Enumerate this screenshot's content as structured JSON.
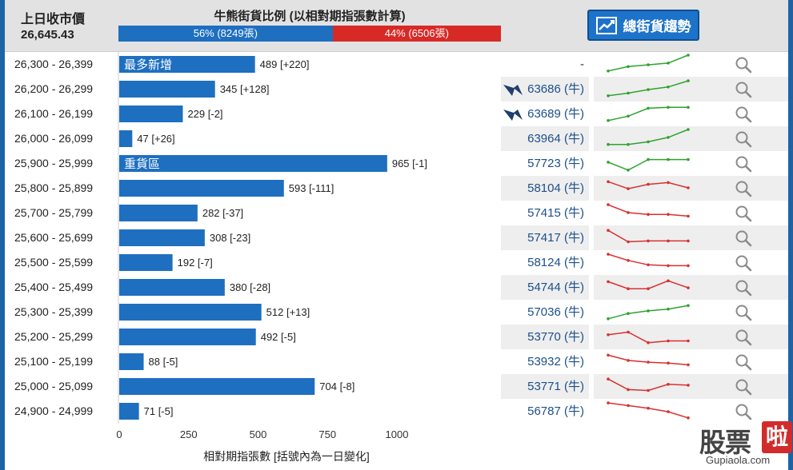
{
  "header": {
    "prev_close_label": "上日收市價",
    "prev_close_value": "26,645.43",
    "ratio_title": "牛熊街貨比例 (以相對期指張數計算)",
    "bull_text": "56% (8249張)",
    "bear_text": "44% (6506張)",
    "bull_pct": 56,
    "bear_pct": 44,
    "trend_button": "總街貨趨勢"
  },
  "colors": {
    "bar": "#1e6fc0",
    "bull": "#1e6fc0",
    "bear": "#d72a26",
    "spark_up": "#2ea32e",
    "spark_down": "#d93030",
    "code_text": "#1c4f8a"
  },
  "chart_data": {
    "type": "bar",
    "orientation": "horizontal",
    "xlabel": "相對期指張數 [括號內為一日變化]",
    "xlim": [
      0,
      1000
    ],
    "xticks": [
      0,
      250,
      500,
      750,
      1000
    ],
    "categories": [
      "26,300 - 26,399",
      "26,200 - 26,299",
      "26,100 - 26,199",
      "26,000 - 26,099",
      "25,900 - 25,999",
      "25,800 - 25,899",
      "25,700 - 25,799",
      "25,600 - 25,699",
      "25,500 - 25,599",
      "25,400 - 25,499",
      "25,300 - 25,399",
      "25,200 - 25,299",
      "25,100 - 25,199",
      "25,000 - 25,099",
      "24,900 - 24,999"
    ],
    "values": [
      489,
      345,
      229,
      47,
      965,
      593,
      282,
      308,
      192,
      380,
      512,
      492,
      88,
      704,
      71
    ],
    "data_labels": [
      "489 [+220]",
      "345 [+128]",
      "229 [-2]",
      "47 [+26]",
      "965 [-1]",
      "593 [-111]",
      "282 [-37]",
      "308 [-23]",
      "192 [-7]",
      "380 [-28]",
      "512 [+13]",
      "492 [-5]",
      "88 [-5]",
      "704 [-8]",
      "71 [-5]"
    ],
    "bar_notes": [
      {
        "row": 0,
        "text": "最多新增"
      },
      {
        "row": 4,
        "text": "重貨區"
      }
    ]
  },
  "rows": [
    {
      "code": "-",
      "icon": false,
      "trend": "up",
      "spark": [
        0.1,
        0.35,
        0.45,
        0.55,
        1.0
      ]
    },
    {
      "code": "63686 (牛)",
      "icon": true,
      "trend": "up",
      "spark": [
        0.1,
        0.25,
        0.45,
        0.6,
        0.95
      ]
    },
    {
      "code": "63689 (牛)",
      "icon": true,
      "trend": "up",
      "spark": [
        0.1,
        0.35,
        0.8,
        0.85,
        0.85
      ]
    },
    {
      "code": "63964 (牛)",
      "icon": false,
      "trend": "up",
      "spark": [
        0.15,
        0.15,
        0.3,
        0.55,
        1.0
      ]
    },
    {
      "code": "57723 (牛)",
      "icon": false,
      "trend": "up",
      "spark": [
        0.55,
        0.1,
        0.7,
        0.7,
        0.7
      ]
    },
    {
      "code": "58104 (牛)",
      "icon": false,
      "trend": "down",
      "spark": [
        0.85,
        0.45,
        0.7,
        0.8,
        0.5
      ]
    },
    {
      "code": "57415 (牛)",
      "icon": false,
      "trend": "down",
      "spark": [
        0.95,
        0.5,
        0.4,
        0.4,
        0.3
      ]
    },
    {
      "code": "57417 (牛)",
      "icon": false,
      "trend": "down",
      "spark": [
        0.9,
        0.25,
        0.3,
        0.3,
        0.3
      ]
    },
    {
      "code": "58124 (牛)",
      "icon": false,
      "trend": "down",
      "spark": [
        0.95,
        0.6,
        0.35,
        0.3,
        0.3
      ]
    },
    {
      "code": "54744 (牛)",
      "icon": false,
      "trend": "down",
      "spark": [
        0.8,
        0.4,
        0.4,
        0.85,
        0.45
      ]
    },
    {
      "code": "57036 (牛)",
      "icon": false,
      "trend": "up",
      "spark": [
        0.1,
        0.4,
        0.55,
        0.65,
        0.85
      ]
    },
    {
      "code": "53770 (牛)",
      "icon": false,
      "trend": "down",
      "spark": [
        0.6,
        0.75,
        0.15,
        0.25,
        0.25
      ]
    },
    {
      "code": "53932 (牛)",
      "icon": false,
      "trend": "down",
      "spark": [
        0.85,
        0.55,
        0.45,
        0.4,
        0.3
      ]
    },
    {
      "code": "53771 (牛)",
      "icon": false,
      "trend": "down",
      "spark": [
        0.9,
        0.3,
        0.25,
        0.6,
        0.55
      ]
    },
    {
      "code": "56787 (牛)",
      "icon": false,
      "trend": "down",
      "spark": [
        0.95,
        0.8,
        0.65,
        0.45,
        0.1
      ]
    }
  ],
  "watermark": {
    "logo_text": "股票啦",
    "url": "Gupiaola.com"
  }
}
